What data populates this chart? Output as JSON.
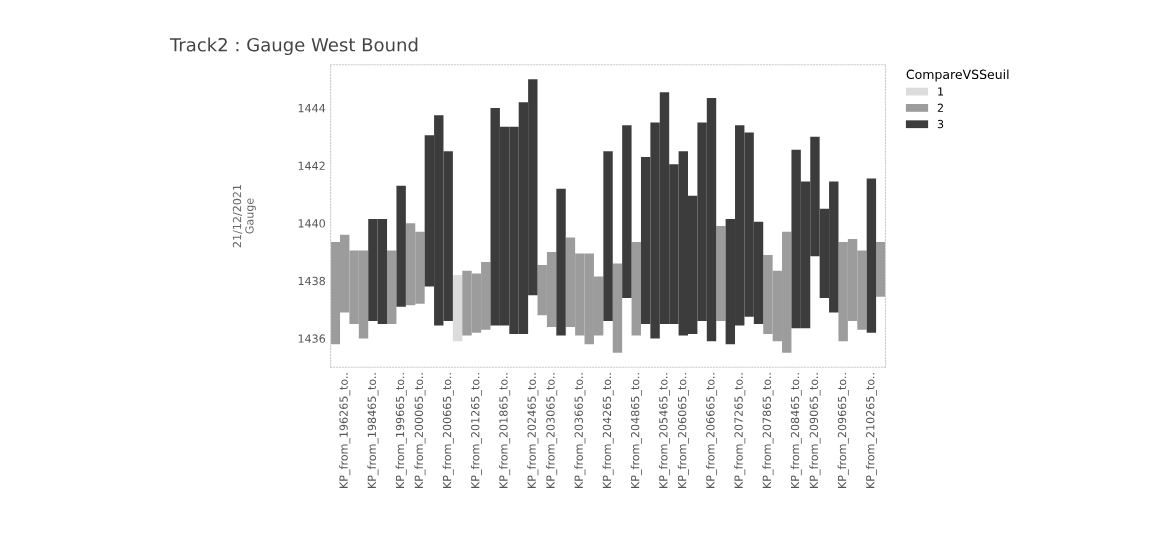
{
  "chart_data": {
    "type": "bar",
    "title": "Track2 : Gauge West Bound",
    "ylabel": "21/12/2021\nGauge",
    "legend_title": "CompareVSSeuil",
    "legend": "top right",
    "categories": [
      null,
      "KP_from_196265_to..",
      null,
      null,
      "KP_from_198465_to..",
      null,
      null,
      "KP_from_199665_to..",
      null,
      "KP_from_200065_to..",
      null,
      null,
      "KP_from_200665_to..",
      null,
      null,
      "KP_from_201265_to..",
      null,
      null,
      "KP_from_201865_to..",
      null,
      null,
      "KP_from_202465_to..",
      null,
      "KP_from_203065_to..",
      null,
      null,
      "KP_from_203665_to..",
      null,
      null,
      "KP_from_204265_to..",
      null,
      null,
      "KP_from_204865_to..",
      null,
      null,
      "KP_from_205465_to..",
      null,
      "KP_from_206065_to..",
      null,
      null,
      "KP_from_206665_to..",
      null,
      null,
      "KP_from_207265_to..",
      null,
      null,
      "KP_from_207865_to..",
      null,
      null,
      "KP_from_208465_to..",
      null,
      "KP_from_209065_to..",
      null,
      null,
      "KP_from_209665_to..",
      null,
      null,
      "KP_from_210265_to..",
      null
    ],
    "ylim": [
      1435,
      1445.5
    ],
    "yticks": [
      1436,
      1438,
      1440,
      1442,
      1444
    ],
    "grid": false,
    "series": [
      {
        "name": "1",
        "color": "#dcdcdc",
        "values": [
          null,
          null,
          null,
          null,
          null,
          null,
          null,
          null,
          null,
          null,
          null,
          null,
          null,
          2.3,
          null,
          null,
          null,
          null,
          null,
          null,
          null,
          null,
          null,
          null,
          null,
          null,
          null,
          null,
          null,
          null,
          null,
          null,
          null,
          null,
          null,
          null,
          null,
          null,
          null,
          null,
          null,
          null,
          null,
          null,
          null,
          null,
          null,
          null,
          null,
          null,
          null,
          null,
          null,
          null,
          null,
          null,
          null,
          null,
          null
        ],
        "base": [
          null,
          null,
          null,
          null,
          null,
          null,
          null,
          null,
          null,
          null,
          null,
          null,
          null,
          1435.9,
          null,
          null,
          null,
          null,
          null,
          null,
          null,
          null,
          null,
          null,
          null,
          null,
          null,
          null,
          null,
          null,
          null,
          null,
          null,
          null,
          null,
          null,
          null,
          null,
          null,
          null,
          null,
          null,
          null,
          null,
          null,
          null,
          null,
          null,
          null,
          null,
          null,
          null,
          null,
          null,
          null,
          null,
          null,
          null,
          null
        ]
      },
      {
        "name": "2",
        "color": "#9c9c9c",
        "values": [
          3.55,
          2.7,
          2.55,
          3.05,
          null,
          null,
          2.55,
          null,
          2.85,
          2.5,
          null,
          null,
          null,
          null,
          2.25,
          2.05,
          2.35,
          null,
          null,
          null,
          null,
          null,
          1.75,
          2.6,
          null,
          3.1,
          2.85,
          3.15,
          2.05,
          null,
          3.1,
          null,
          3.25,
          null,
          null,
          null,
          null,
          null,
          null,
          null,
          null,
          3.3,
          null,
          null,
          null,
          null,
          2.75,
          2.45,
          4.2,
          null,
          null,
          null,
          null,
          null,
          3.45,
          2.85,
          2.75,
          null,
          1.9
        ],
        "base": [
          1435.8,
          1436.9,
          1436.5,
          1436.0,
          null,
          null,
          1436.5,
          null,
          1437.15,
          1437.2,
          null,
          null,
          null,
          null,
          1436.1,
          1436.2,
          1436.3,
          null,
          null,
          null,
          null,
          null,
          1436.8,
          1436.4,
          null,
          1436.4,
          1436.1,
          1435.8,
          1436.1,
          null,
          1435.5,
          null,
          1436.1,
          null,
          null,
          null,
          null,
          null,
          null,
          null,
          null,
          1436.6,
          null,
          null,
          null,
          null,
          1436.15,
          1435.9,
          1435.5,
          null,
          null,
          null,
          null,
          null,
          1435.9,
          1436.6,
          1436.3,
          null,
          1437.45
        ]
      },
      {
        "name": "3",
        "color": "#3c3c3c",
        "values": [
          null,
          null,
          null,
          null,
          3.55,
          3.65,
          null,
          4.2,
          null,
          null,
          5.25,
          7.3,
          5.9,
          null,
          null,
          null,
          null,
          7.55,
          6.9,
          7.2,
          8.05,
          7.5,
          null,
          null,
          5.1,
          null,
          null,
          null,
          null,
          5.9,
          null,
          6.0,
          null,
          5.8,
          7.5,
          8.05,
          5.55,
          6.4,
          4.8,
          6.9,
          8.45,
          null,
          4.35,
          6.95,
          6.4,
          3.55,
          null,
          null,
          null,
          6.2,
          5.1,
          4.15,
          3.1,
          4.55,
          null,
          null,
          null,
          5.35,
          null
        ],
        "base": [
          null,
          null,
          null,
          null,
          1436.6,
          1436.5,
          null,
          1437.1,
          null,
          null,
          1437.8,
          1436.45,
          1436.6,
          null,
          null,
          null,
          null,
          1436.45,
          1436.45,
          1436.15,
          1436.15,
          1437.5,
          null,
          null,
          1436.1,
          null,
          null,
          null,
          null,
          1436.6,
          null,
          1437.4,
          null,
          1436.5,
          1436.0,
          1436.5,
          1436.5,
          1436.1,
          1436.15,
          1436.6,
          1435.9,
          null,
          1435.8,
          1436.45,
          1436.75,
          1436.5,
          null,
          null,
          null,
          1436.35,
          1436.35,
          1438.85,
          1437.4,
          1436.9,
          null,
          null,
          null,
          1436.2,
          null
        ]
      }
    ]
  }
}
